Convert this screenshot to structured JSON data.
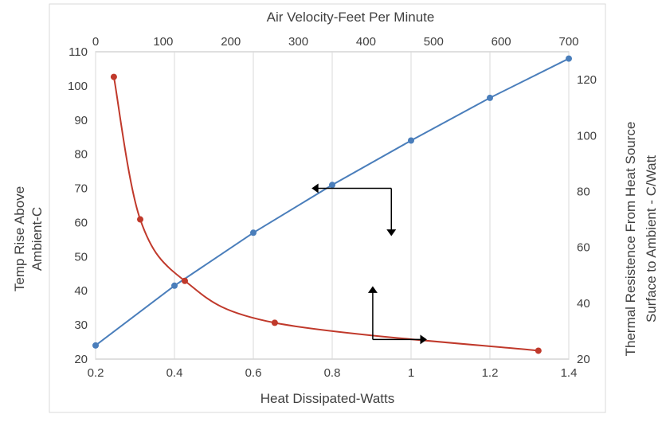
{
  "chart_data": {
    "type": "line",
    "title": "",
    "x_bottom": {
      "label": "Heat Dissipated-Watts",
      "range": [
        0.2,
        1.4
      ],
      "ticks": [
        "0.2",
        "0.4",
        "0.6",
        "0.8",
        "1",
        "1.2",
        "1.4"
      ]
    },
    "x_top": {
      "label": "Air Velocity-Feet Per Minute",
      "range": [
        0,
        700
      ],
      "ticks": [
        "0",
        "100",
        "200",
        "300",
        "400",
        "500",
        "600",
        "700"
      ]
    },
    "y_left": {
      "label_lines": [
        "Temp Rise Above",
        "Ambient-C"
      ],
      "range": [
        20,
        110
      ],
      "ticks": [
        "20",
        "30",
        "40",
        "50",
        "60",
        "70",
        "80",
        "90",
        "100",
        "110"
      ]
    },
    "y_right": {
      "label_lines": [
        "Thermal Resistence From Heat Source",
        "Surface to Ambient - C/Watt"
      ],
      "range": [
        20,
        130
      ],
      "ticks": [
        "20",
        "40",
        "60",
        "80",
        "100",
        "120"
      ]
    },
    "grid": {
      "vertical": true,
      "horizontal": false
    },
    "series": [
      {
        "id": "blue",
        "axes": [
          "x_bottom",
          "y_left"
        ],
        "color": "#4a7ebb",
        "points": [
          [
            0.2,
            24
          ],
          [
            0.4,
            41.5
          ],
          [
            0.6,
            57
          ],
          [
            0.8,
            71
          ],
          [
            1.0,
            84
          ],
          [
            1.2,
            96.5
          ],
          [
            1.4,
            108
          ]
        ]
      },
      {
        "id": "red",
        "axes": [
          "x_top",
          "y_right"
        ],
        "color": "#c0392b",
        "points": [
          [
            27,
            121
          ],
          [
            66,
            70
          ],
          [
            132,
            48
          ],
          [
            265,
            33
          ],
          [
            655,
            23
          ]
        ]
      }
    ],
    "annotations": [
      {
        "id": "arrow-to-left-axis",
        "description": "arrow from blue curve pointing to left axis and down to bottom axis",
        "anchor": {
          "x": 0.95,
          "y": 70,
          "axes": [
            "x_bottom",
            "y_left"
          ]
        }
      },
      {
        "id": "arrow-to-right-axis",
        "description": "arrow from red curve pointing up to top axis and right to right axis",
        "anchor": {
          "x": 410,
          "y": 27,
          "axes": [
            "x_top",
            "y_right"
          ]
        }
      }
    ]
  }
}
